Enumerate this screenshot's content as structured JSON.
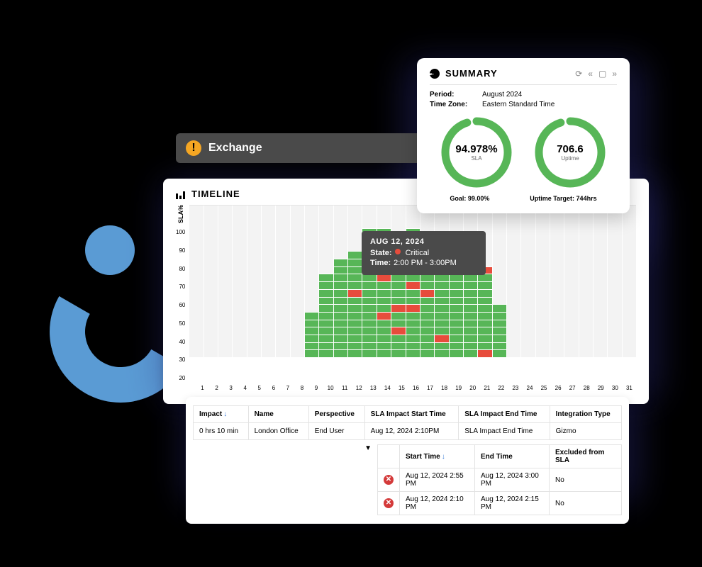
{
  "colors": {
    "green": "#57b657",
    "red": "#e74c3c",
    "grey": "#f3f3f3",
    "accent": "#5a9bd4",
    "bannerBg": "#4a4a4a",
    "warnIconBg": "#f5a623"
  },
  "exchange": {
    "title": "Exchange"
  },
  "timeline": {
    "title": "TIMELINE",
    "y_label": "SLA%",
    "y_ticks": [
      "100",
      "90",
      "80",
      "70",
      "60",
      "50",
      "40",
      "30",
      "20"
    ],
    "x_ticks": [
      "1",
      "2",
      "3",
      "4",
      "5",
      "6",
      "7",
      "8",
      "9",
      "10",
      "11",
      "12",
      "13",
      "14",
      "15",
      "16",
      "17",
      "18",
      "19",
      "20",
      "21",
      "22",
      "23",
      "24",
      "25",
      "26",
      "27",
      "28",
      "29",
      "30",
      "31"
    ],
    "segment_unit_pct": 5,
    "days": [
      {
        "segments": []
      },
      {
        "segments": []
      },
      {
        "segments": []
      },
      {
        "segments": []
      },
      {
        "segments": []
      },
      {
        "segments": []
      },
      {
        "segments": []
      },
      {
        "segments": []
      },
      {
        "segments": [
          [
            "g",
            6
          ]
        ]
      },
      {
        "segments": [
          [
            "g",
            11
          ]
        ]
      },
      {
        "segments": [
          [
            "g",
            13
          ]
        ]
      },
      {
        "segments": [
          [
            "g",
            8
          ],
          [
            "r",
            1
          ],
          [
            "g",
            5
          ]
        ]
      },
      {
        "segments": [
          [
            "g",
            12
          ],
          [
            "r",
            1
          ],
          [
            "g",
            4
          ]
        ]
      },
      {
        "segments": [
          [
            "g",
            5
          ],
          [
            "r",
            1
          ],
          [
            "g",
            4
          ],
          [
            "r",
            1
          ],
          [
            "g",
            6
          ]
        ]
      },
      {
        "segments": [
          [
            "g",
            3
          ],
          [
            "r",
            1
          ],
          [
            "g",
            2
          ],
          [
            "r",
            1
          ],
          [
            "g",
            6
          ],
          [
            "r",
            1
          ],
          [
            "g",
            1
          ]
        ]
      },
      {
        "segments": [
          [
            "g",
            6
          ],
          [
            "r",
            1
          ],
          [
            "g",
            2
          ],
          [
            "r",
            1
          ],
          [
            "g",
            3
          ],
          [
            "r",
            1
          ],
          [
            "g",
            3
          ]
        ]
      },
      {
        "segments": [
          [
            "g",
            8
          ],
          [
            "r",
            1
          ],
          [
            "g",
            3
          ]
        ]
      },
      {
        "segments": [
          [
            "g",
            2
          ],
          [
            "r",
            1
          ],
          [
            "g",
            9
          ]
        ]
      },
      {
        "segments": [
          [
            "g",
            14
          ]
        ]
      },
      {
        "segments": [
          [
            "g",
            13
          ]
        ]
      },
      {
        "segments": [
          [
            "r",
            1
          ],
          [
            "g",
            10
          ],
          [
            "r",
            1
          ]
        ]
      },
      {
        "segments": [
          [
            "g",
            7
          ]
        ]
      },
      {
        "segments": []
      },
      {
        "segments": []
      },
      {
        "segments": []
      },
      {
        "segments": []
      },
      {
        "segments": []
      },
      {
        "segments": []
      },
      {
        "segments": []
      },
      {
        "segments": []
      },
      {
        "segments": []
      }
    ]
  },
  "tooltip": {
    "date": "AUG 12, 2024",
    "state_label": "State:",
    "state_value": "Critical",
    "time_label": "Time:",
    "time_value": "2:00 PM - 3:00PM"
  },
  "summary": {
    "title": "SUMMARY",
    "period_label": "Period:",
    "period_value": "August 2024",
    "tz_label": "Time Zone:",
    "tz_value": "Eastern Standard Time",
    "gauges": [
      {
        "value": "94.978%",
        "label": "SLA",
        "pct": 95
      },
      {
        "value": "706.6",
        "label": "Uptime",
        "pct": 95
      }
    ],
    "gauge_color": "#57b657",
    "gauge_track": "#ffffff",
    "gauge_stroke": 11,
    "goal": "Goal: 99.00%",
    "uptime_target": "Uptime Target: 744hrs"
  },
  "table1": {
    "columns": [
      "Impact",
      "Name",
      "Perspective",
      "SLA Impact Start Time",
      "SLA Impact End Time",
      "Integration Type"
    ],
    "sort_col": 0,
    "rows": [
      [
        "0 hrs 10 min",
        "London Office",
        "End User",
        "Aug 12, 2024 2:10PM",
        "SLA Impact End Time",
        "Gizmo"
      ]
    ]
  },
  "table2": {
    "columns": [
      "",
      "Start Time",
      "End Time",
      "Excluded from SLA"
    ],
    "sort_col": 1,
    "rows": [
      [
        "x",
        "Aug 12, 2024 2:55 PM",
        "Aug 12, 2024 3:00 PM",
        "No"
      ],
      [
        "x",
        "Aug 12, 2024 2:10 PM",
        "Aug 12, 2024 2:15 PM",
        "No"
      ]
    ]
  }
}
